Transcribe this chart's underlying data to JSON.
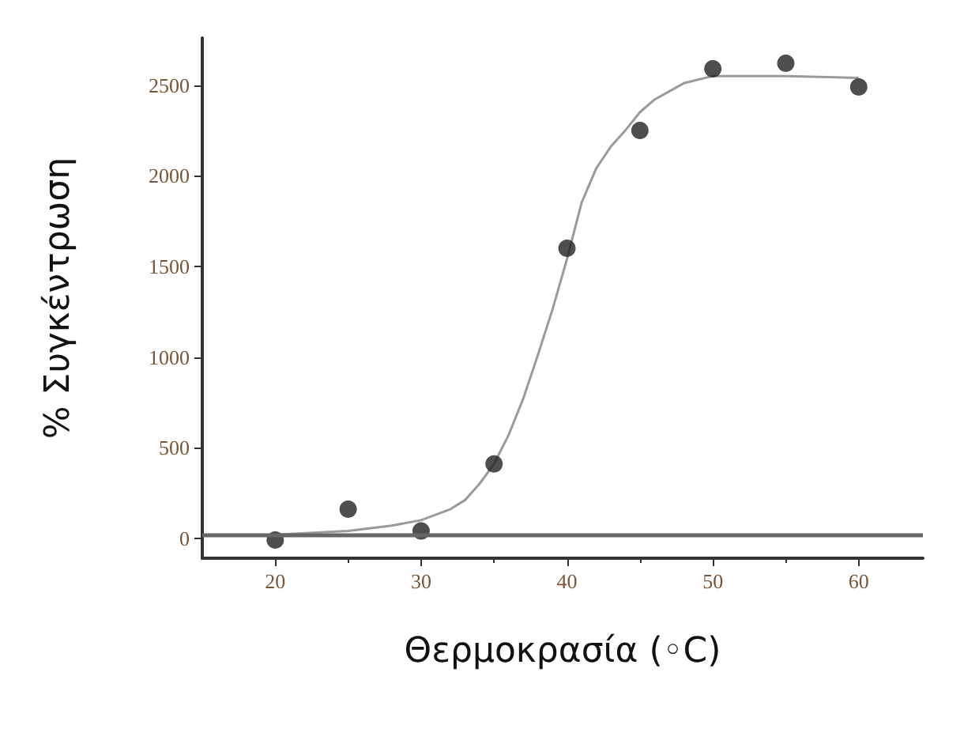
{
  "chart_data": {
    "type": "scatter",
    "xlabel": "Θερμοκρασία (◦C)",
    "ylabel": "% Συγκέντρωση",
    "x": [
      20,
      25,
      30,
      35,
      40,
      45,
      50,
      55,
      60
    ],
    "series": [
      {
        "color": "#222222",
        "marker": "circle",
        "values": [
          -10,
          160,
          40,
          410,
          1600,
          2250,
          2590,
          2620,
          2490
        ]
      },
      {
        "type": "line",
        "color": "#9a9a9a",
        "marker": "none",
        "x": [
          20,
          25,
          28,
          30,
          32,
          33,
          34,
          35,
          36,
          37,
          38,
          39,
          40,
          41,
          42,
          43,
          44,
          45,
          46,
          48,
          50,
          55,
          60
        ],
        "values": [
          20,
          40,
          70,
          100,
          160,
          210,
          300,
          410,
          570,
          770,
          1010,
          1260,
          1540,
          1850,
          2040,
          2160,
          2250,
          2350,
          2420,
          2510,
          2550,
          2550,
          2540
        ]
      }
    ],
    "xlim": [
      15,
      64.4
    ],
    "xticks": [
      20,
      30,
      40,
      50,
      60
    ],
    "ylim": [
      -110,
      2760
    ],
    "yticks": [
      0,
      500,
      1000,
      1500,
      2000,
      2500
    ],
    "ref_lines": [
      {
        "axis": "y",
        "value": 15,
        "color": "#666666"
      }
    ],
    "grid": false
  }
}
